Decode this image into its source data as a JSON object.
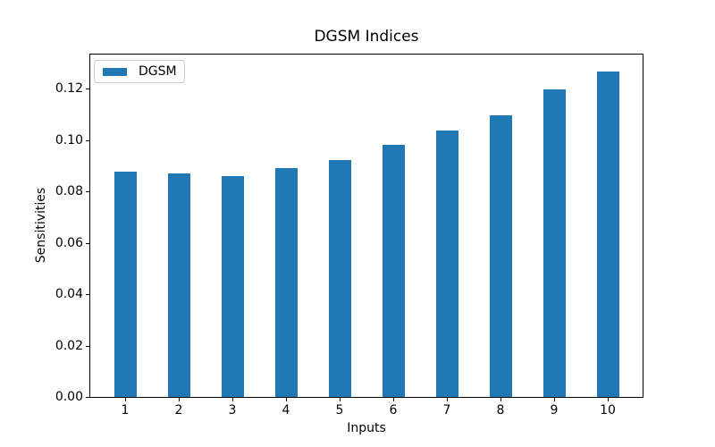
{
  "figure": {
    "background": "#ffffff"
  },
  "chart_data": {
    "type": "bar",
    "title": "DGSM Indices",
    "xlabel": "Inputs",
    "ylabel": "Sensitivities",
    "categories": [
      "1",
      "2",
      "3",
      "4",
      "5",
      "6",
      "7",
      "8",
      "9",
      "10"
    ],
    "series": [
      {
        "name": "DGSM",
        "color": "#1f77b4",
        "values": [
          0.088,
          0.0874,
          0.0861,
          0.0894,
          0.0926,
          0.0985,
          0.104,
          0.1101,
          0.1202,
          0.1272
        ]
      }
    ],
    "ylim": [
      0,
      0.1337
    ],
    "yticks": [
      {
        "value": 0.0,
        "label": "0.00"
      },
      {
        "value": 0.02,
        "label": "0.02"
      },
      {
        "value": 0.04,
        "label": "0.04"
      },
      {
        "value": 0.06,
        "label": "0.06"
      },
      {
        "value": 0.08,
        "label": "0.08"
      },
      {
        "value": 0.1,
        "label": "0.10"
      },
      {
        "value": 0.12,
        "label": "0.12"
      }
    ],
    "grid": false,
    "legend": {
      "label": "DGSM",
      "position": "upper-left",
      "swatch_color": "#1f77b4",
      "border_color": "#cccccc"
    },
    "axis_color": "#000000",
    "text_color": "#000000"
  }
}
